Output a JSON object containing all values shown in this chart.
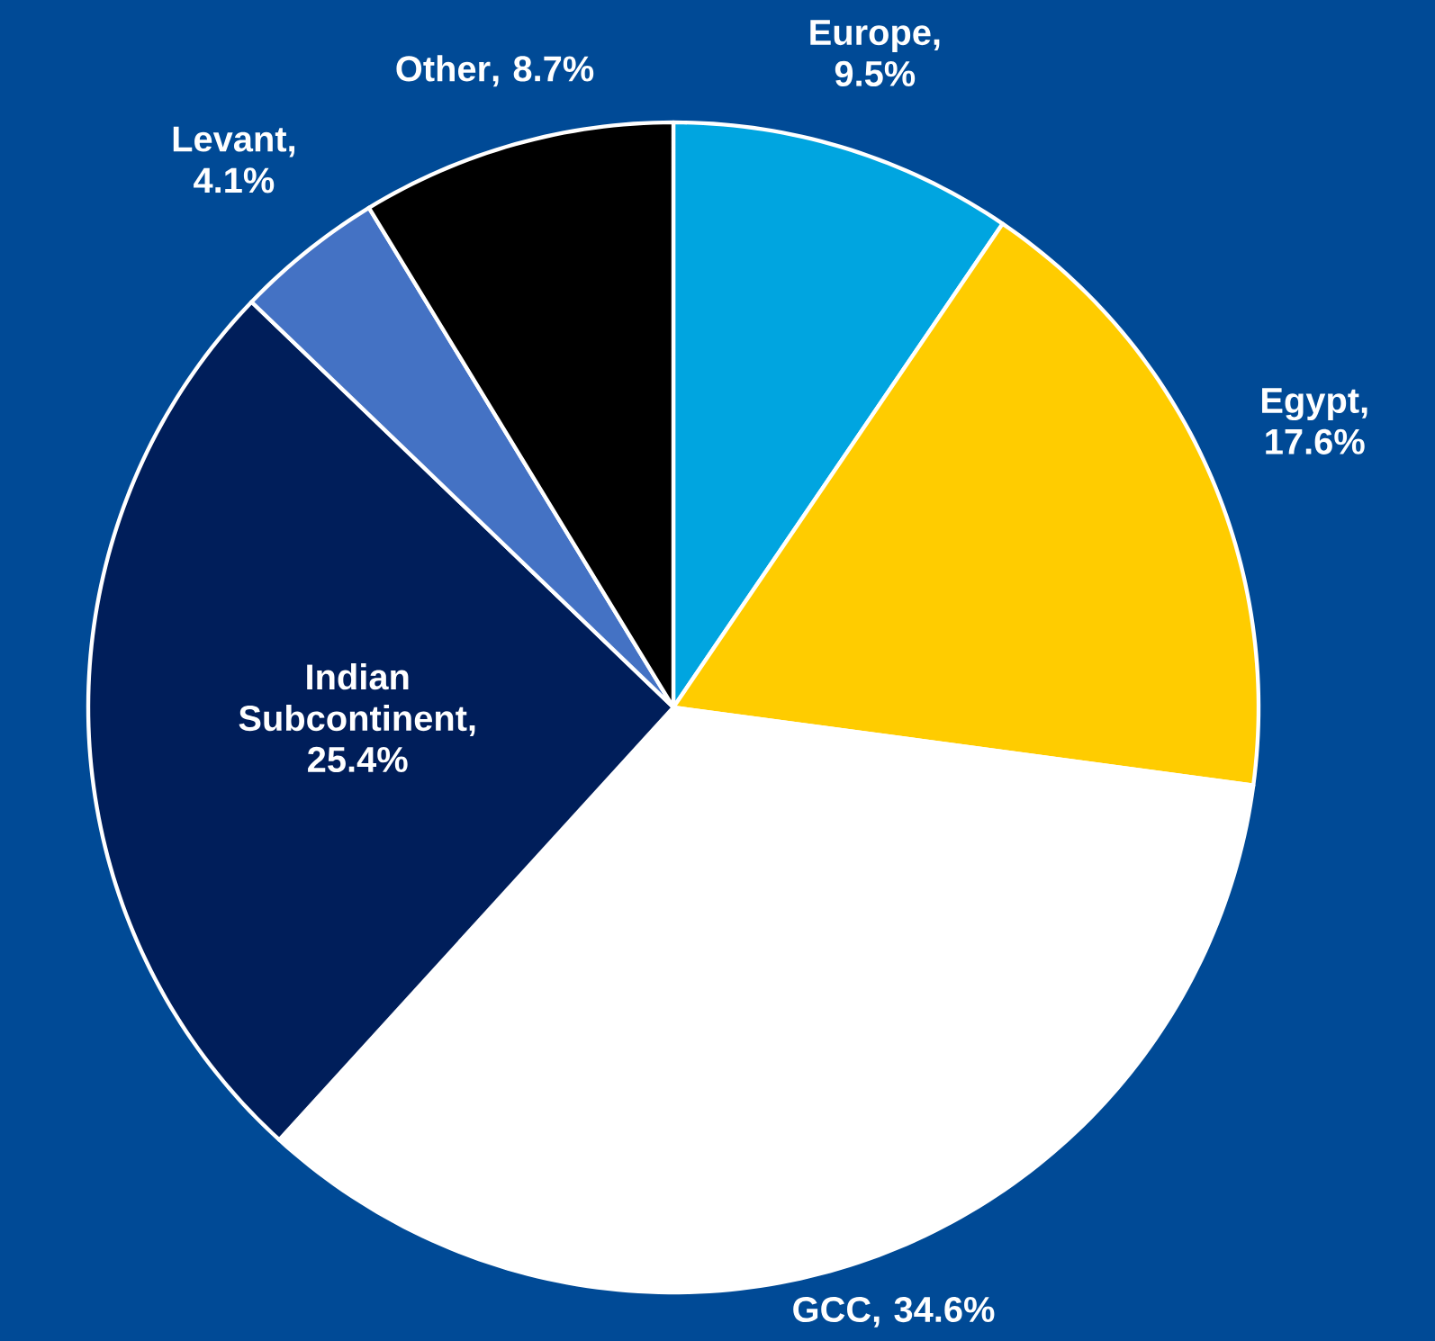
{
  "chart_data": {
    "type": "pie",
    "categories": [
      "Europe",
      "Egypt",
      "GCC",
      "Indian Subcontinent",
      "Levant",
      "Other"
    ],
    "values": [
      9.5,
      17.6,
      34.6,
      25.4,
      4.1,
      8.7
    ],
    "colors": [
      "#00a5e0",
      "#ffcc00",
      "#ffffff",
      "#001e5a",
      "#4472c4",
      "#000000"
    ],
    "value_labels": [
      ", 9.5%",
      ", 17.6%",
      ", 34.6%",
      ", 25.4%",
      ", 4.1%",
      ", 8.7%"
    ]
  }
}
